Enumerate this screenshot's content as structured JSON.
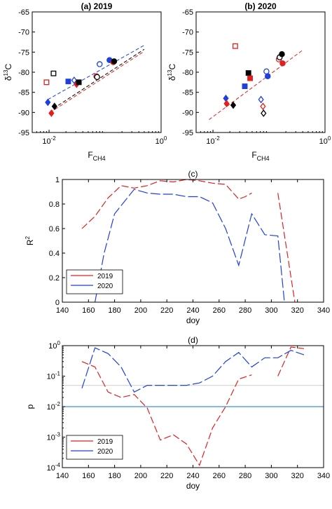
{
  "chart_data": [
    {
      "id": "a",
      "type": "scatter",
      "title": "(a) 2019",
      "xlabel_main": "F",
      "xlabel_sub": "CH4",
      "ylabel_main": "δ",
      "ylabel_sup": "13",
      "ylabel_rest": "C",
      "xscale": "log",
      "xlim": [
        0.005,
        1
      ],
      "ylim": [
        -95,
        -65
      ],
      "xticks": [
        {
          "v": 0.01,
          "base": "10",
          "exp": "-2"
        },
        {
          "v": 1,
          "base": "10",
          "exp": "0"
        }
      ],
      "yticks": [
        -95,
        -90,
        -85,
        -80,
        -75,
        -70,
        -65
      ],
      "points": [
        {
          "x": 0.009,
          "y": -82.5,
          "shape": "square",
          "fill": false,
          "color": "#e02020"
        },
        {
          "x": 0.0095,
          "y": -87.5,
          "shape": "diamond",
          "fill": true,
          "color": "#1f3fe0"
        },
        {
          "x": 0.011,
          "y": -90.2,
          "shape": "diamond",
          "fill": true,
          "color": "#e02020"
        },
        {
          "x": 0.012,
          "y": -80.3,
          "shape": "square",
          "fill": false,
          "color": "#000000"
        },
        {
          "x": 0.0125,
          "y": -88.5,
          "shape": "diamond",
          "fill": true,
          "color": "#000000"
        },
        {
          "x": 0.022,
          "y": -82.3,
          "shape": "square",
          "fill": true,
          "color": "#1f3fe0"
        },
        {
          "x": 0.028,
          "y": -82.0,
          "shape": "diamond",
          "fill": false,
          "color": "#1f3fe0"
        },
        {
          "x": 0.031,
          "y": -83.0,
          "shape": "diamond",
          "fill": true,
          "color": "#e02020"
        },
        {
          "x": 0.034,
          "y": -82.5,
          "shape": "square",
          "fill": true,
          "color": "#000000"
        },
        {
          "x": 0.07,
          "y": -81.0,
          "shape": "circle",
          "fill": false,
          "color": "#e02020"
        },
        {
          "x": 0.072,
          "y": -81.2,
          "shape": "circle",
          "fill": false,
          "color": "#000000"
        },
        {
          "x": 0.08,
          "y": -78.0,
          "shape": "circle",
          "fill": false,
          "color": "#1f3fe0"
        },
        {
          "x": 0.12,
          "y": -77.0,
          "shape": "circle",
          "fill": true,
          "color": "#1f3fe0"
        },
        {
          "x": 0.14,
          "y": -77.5,
          "shape": "circle",
          "fill": true,
          "color": "#e02020"
        },
        {
          "x": 0.145,
          "y": -77.3,
          "shape": "circle",
          "fill": true,
          "color": "#000000"
        }
      ],
      "fits": [
        {
          "color": "#1f3fe0",
          "x": [
            0.0095,
            0.5
          ],
          "y": [
            -86.8,
            -73.3
          ]
        },
        {
          "color": "#e02020",
          "x": [
            0.0105,
            0.5
          ],
          "y": [
            -90.0,
            -74.8
          ]
        },
        {
          "color": "#000000",
          "x": [
            0.012,
            0.5
          ],
          "y": [
            -89.0,
            -74.3
          ]
        }
      ]
    },
    {
      "id": "b",
      "type": "scatter",
      "title": "(b) 2020",
      "xlabel_main": "F",
      "xlabel_sub": "CH4",
      "ylabel_main": "δ",
      "ylabel_sup": "13",
      "ylabel_rest": "C",
      "xscale": "log",
      "xlim": [
        0.005,
        1
      ],
      "ylim": [
        -95,
        -65
      ],
      "xticks": [
        {
          "v": 0.01,
          "base": "10",
          "exp": "-2"
        },
        {
          "v": 1,
          "base": "10",
          "exp": "0"
        }
      ],
      "yticks": [
        -95,
        -90,
        -85,
        -80,
        -75,
        -70,
        -65
      ],
      "points": [
        {
          "x": 0.025,
          "y": -73.5,
          "shape": "square",
          "fill": false,
          "color": "#e02020"
        },
        {
          "x": 0.017,
          "y": -86.5,
          "shape": "diamond",
          "fill": true,
          "color": "#1f3fe0"
        },
        {
          "x": 0.0175,
          "y": -87.8,
          "shape": "diamond",
          "fill": true,
          "color": "#e02020"
        },
        {
          "x": 0.023,
          "y": -88.2,
          "shape": "diamond",
          "fill": true,
          "color": "#000000"
        },
        {
          "x": 0.037,
          "y": -83.5,
          "shape": "square",
          "fill": true,
          "color": "#1f3fe0"
        },
        {
          "x": 0.043,
          "y": -80.2,
          "shape": "square",
          "fill": true,
          "color": "#000000"
        },
        {
          "x": 0.046,
          "y": -81.5,
          "shape": "square",
          "fill": true,
          "color": "#e02020"
        },
        {
          "x": 0.072,
          "y": -86.8,
          "shape": "diamond",
          "fill": false,
          "color": "#1f3fe0"
        },
        {
          "x": 0.078,
          "y": -88.5,
          "shape": "diamond",
          "fill": false,
          "color": "#e02020"
        },
        {
          "x": 0.08,
          "y": -90.2,
          "shape": "diamond",
          "fill": false,
          "color": "#000000"
        },
        {
          "x": 0.09,
          "y": -79.8,
          "shape": "circle",
          "fill": false,
          "color": "#1f3fe0"
        },
        {
          "x": 0.095,
          "y": -81.0,
          "shape": "circle",
          "fill": true,
          "color": "#1f3fe0"
        },
        {
          "x": 0.15,
          "y": -76.8,
          "shape": "circle",
          "fill": false,
          "color": "#e02020"
        },
        {
          "x": 0.155,
          "y": -76.3,
          "shape": "circle",
          "fill": false,
          "color": "#000000"
        },
        {
          "x": 0.17,
          "y": -75.5,
          "shape": "circle",
          "fill": true,
          "color": "#000000"
        },
        {
          "x": 0.175,
          "y": -77.8,
          "shape": "circle",
          "fill": true,
          "color": "#e02020"
        }
      ],
      "fits": [
        {
          "color": "#e02020",
          "x": [
            0.0085,
            0.4
          ],
          "y": [
            -91.8,
            -74.5
          ]
        }
      ]
    },
    {
      "id": "c",
      "type": "line",
      "title": "(c)",
      "xlabel": "doy",
      "ylabel_main": "R",
      "ylabel_sup": "2",
      "xlim": [
        140,
        340
      ],
      "ylim": [
        0,
        1
      ],
      "xticks": [
        140,
        160,
        180,
        200,
        220,
        240,
        260,
        280,
        300,
        320,
        340
      ],
      "yticks": [
        0,
        0.2,
        0.4,
        0.6,
        0.8,
        1
      ],
      "legend_placement": "bottom-left",
      "series": [
        {
          "name": "2019",
          "color": "#e02020",
          "dash": "10,4",
          "segments": [
            [
              [
                155,
                0.6
              ],
              [
                165,
                0.7
              ],
              [
                175,
                0.85
              ],
              [
                185,
                0.95
              ],
              [
                195,
                0.93
              ],
              [
                205,
                0.95
              ],
              [
                215,
                0.99
              ],
              [
                225,
                0.98
              ],
              [
                235,
                1.0
              ],
              [
                245,
                0.99
              ],
              [
                255,
                0.97
              ],
              [
                265,
                0.96
              ],
              [
                275,
                0.84
              ],
              [
                280,
                0.86
              ],
              [
                285,
                0.89
              ]
            ],
            [
              [
                305,
                0.89
              ],
              [
                318,
                0
              ]
            ]
          ]
        },
        {
          "name": "2020",
          "color": "#1f3fe0",
          "dash": "14,4",
          "segments": [
            [
              [
                165,
                0
              ],
              [
                172,
                0.4
              ],
              [
                180,
                0.72
              ],
              [
                195,
                0.92
              ],
              [
                205,
                0.89
              ],
              [
                215,
                0.88
              ],
              [
                225,
                0.88
              ],
              [
                235,
                0.86
              ],
              [
                245,
                0.86
              ],
              [
                255,
                0.81
              ],
              [
                265,
                0.6
              ],
              [
                275,
                0.3
              ],
              [
                285,
                0.72
              ],
              [
                295,
                0.55
              ],
              [
                305,
                0.54
              ],
              [
                310,
                0
              ]
            ]
          ]
        }
      ]
    },
    {
      "id": "d",
      "type": "line",
      "title": "(d)",
      "xlabel": "doy",
      "ylabel": "p",
      "yscale": "log",
      "xlim": [
        140,
        340
      ],
      "ylim": [
        0.0001,
        1
      ],
      "xticks": [
        140,
        160,
        180,
        200,
        220,
        240,
        260,
        280,
        300,
        320,
        340
      ],
      "yticks": [
        {
          "v": 0.0001,
          "base": "10",
          "exp": "-4"
        },
        {
          "v": 0.001,
          "base": "10",
          "exp": "-3"
        },
        {
          "v": 0.01,
          "base": "10",
          "exp": "-2"
        },
        {
          "v": 0.1,
          "base": "10",
          "exp": "-1"
        },
        {
          "v": 1,
          "base": "10",
          "exp": "0"
        }
      ],
      "legend_placement": "bottom-left",
      "hlines": [
        {
          "y": 0.01,
          "color": "#3a8ee6"
        },
        {
          "y": 0.05,
          "color": "#d8d8d8"
        }
      ],
      "series": [
        {
          "name": "2019",
          "color": "#e02020",
          "dash": "10,4",
          "segments": [
            [
              [
                155,
                0.3
              ],
              [
                165,
                0.2
              ],
              [
                175,
                0.03
              ],
              [
                185,
                0.02
              ],
              [
                195,
                0.025
              ],
              [
                205,
                0.009
              ],
              [
                215,
                0.0008
              ],
              [
                225,
                0.0012
              ],
              [
                235,
                0.0006
              ],
              [
                245,
                0.00012
              ],
              [
                255,
                0.002
              ],
              [
                265,
                0.01
              ],
              [
                275,
                0.08
              ],
              [
                285,
                0.11
              ]
            ],
            [
              [
                305,
                0.1
              ],
              [
                315,
                0.9
              ],
              [
                325,
                0.8
              ]
            ]
          ]
        },
        {
          "name": "2020",
          "color": "#1f3fe0",
          "dash": "14,4",
          "segments": [
            [
              [
                155,
                0.04
              ],
              [
                165,
                0.85
              ],
              [
                175,
                0.55
              ],
              [
                185,
                0.2
              ],
              [
                195,
                0.03
              ],
              [
                205,
                0.05
              ],
              [
                215,
                0.05
              ],
              [
                225,
                0.05
              ],
              [
                235,
                0.05
              ],
              [
                245,
                0.06
              ],
              [
                255,
                0.1
              ],
              [
                265,
                0.3
              ],
              [
                275,
                0.6
              ],
              [
                285,
                0.2
              ],
              [
                295,
                0.4
              ],
              [
                305,
                0.4
              ],
              [
                315,
                0.7
              ],
              [
                325,
                0.5
              ]
            ]
          ]
        }
      ]
    }
  ]
}
